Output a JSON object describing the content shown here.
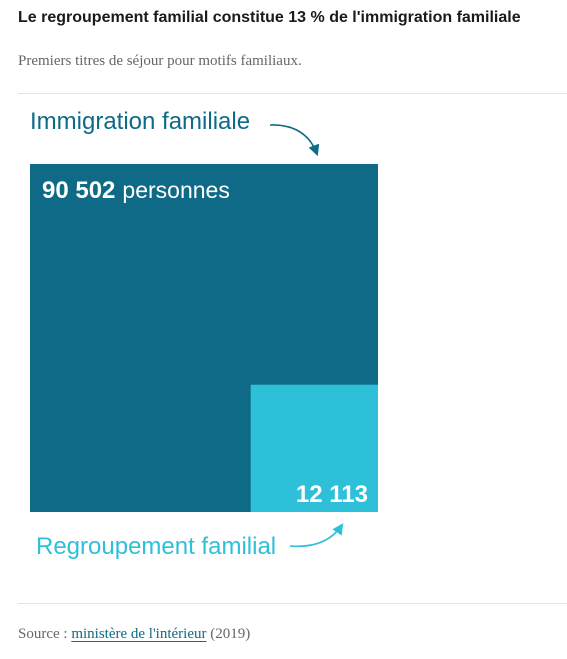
{
  "title": "Le regroupement familial constitue 13 % de l'immigration familiale",
  "subtitle": "Premiers titres de séjour pour motifs familiaux.",
  "colors": {
    "outer": "#0e6a86",
    "inner": "#2ebfd9",
    "title_text": "#1a1a1a",
    "muted_text": "#666666"
  },
  "chart_data": {
    "type": "area",
    "units": "personnes",
    "series": [
      {
        "name": "Immigration familiale",
        "value": 90502,
        "value_label": "90 502",
        "unit_label": "personnes",
        "color": "#0e6a86"
      },
      {
        "name": "Regroupement familial",
        "value": 12113,
        "value_label": "12 113",
        "unit_label": "",
        "color": "#2ebfd9"
      }
    ]
  },
  "source": {
    "prefix": "Source : ",
    "link_text": "ministère de l'intérieur",
    "suffix": " (2019)"
  }
}
